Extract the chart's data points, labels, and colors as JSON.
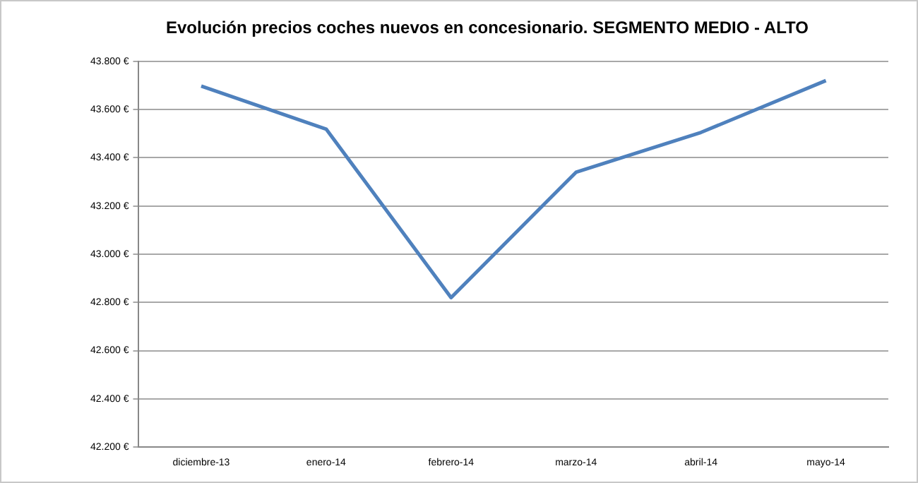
{
  "chart_data": {
    "type": "line",
    "title": "Evolución precios coches nuevos en concesionario. SEGMENTO MEDIO - ALTO",
    "categories": [
      "diciembre-13",
      "enero-14",
      "febrero-14",
      "marzo-14",
      "abril-14",
      "mayo-14"
    ],
    "series": [
      {
        "color": "#4f81bd",
        "values": [
          43697,
          43519,
          42820,
          43340,
          43505,
          43720
        ]
      }
    ],
    "ylim": [
      42200,
      43800
    ],
    "yticks": [
      {
        "value": 42200,
        "label": "42.200 €"
      },
      {
        "value": 42400,
        "label": "42.400 €"
      },
      {
        "value": 42600,
        "label": "42.600 €"
      },
      {
        "value": 42800,
        "label": "42.800 €"
      },
      {
        "value": 43000,
        "label": "43.000 €"
      },
      {
        "value": 43200,
        "label": "43.200 €"
      },
      {
        "value": 43400,
        "label": "43.400 €"
      },
      {
        "value": 43600,
        "label": "43.600 €"
      },
      {
        "value": 43800,
        "label": "43.800 €"
      }
    ],
    "grid": "y",
    "legend": false,
    "marker": "none",
    "line_style": "solid"
  }
}
